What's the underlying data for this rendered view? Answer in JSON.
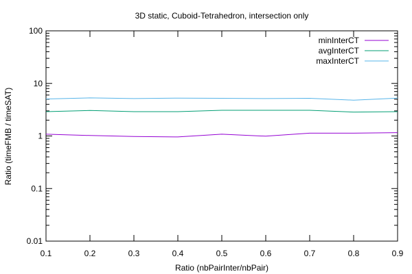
{
  "chart_data": {
    "type": "line",
    "title": "3D static, Cuboid-Tetrahedron, intersection only",
    "xlabel": "Ratio (nbPairInter/nbPair)",
    "ylabel": "Ratio (timeFMB / timeSAT)",
    "xlim": [
      0.1,
      0.9
    ],
    "ylim": [
      0.01,
      100
    ],
    "yscale": "log",
    "grid": false,
    "legend_position": "top-right",
    "x": [
      0.1,
      0.2,
      0.3,
      0.4,
      0.5,
      0.6,
      0.7,
      0.8,
      0.9
    ],
    "x_ticks": [
      "0.1",
      "0.2",
      "0.3",
      "0.4",
      "0.5",
      "0.6",
      "0.7",
      "0.8",
      "0.9"
    ],
    "y_ticks": [
      {
        "value": 0.01,
        "label": "0.01"
      },
      {
        "value": 0.1,
        "label": "0.1"
      },
      {
        "value": 1,
        "label": "1"
      },
      {
        "value": 10,
        "label": "10"
      },
      {
        "value": 100,
        "label": "100"
      }
    ],
    "series": [
      {
        "name": "minInterCT",
        "color": "#9400d3",
        "values": [
          1.08,
          1.02,
          0.98,
          0.96,
          1.08,
          0.99,
          1.13,
          1.13,
          1.16
        ]
      },
      {
        "name": "avgInterCT",
        "color": "#009e73",
        "values": [
          2.9,
          3.05,
          2.9,
          2.9,
          3.08,
          3.08,
          3.08,
          2.85,
          2.9
        ]
      },
      {
        "name": "maxInterCT",
        "color": "#56b4e9",
        "values": [
          5.05,
          5.3,
          5.15,
          5.25,
          5.2,
          5.15,
          5.2,
          4.8,
          5.25
        ]
      }
    ]
  }
}
